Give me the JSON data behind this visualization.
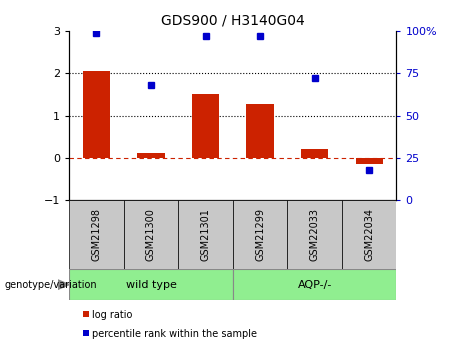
{
  "title": "GDS900 / H3140G04",
  "samples": [
    "GSM21298",
    "GSM21300",
    "GSM21301",
    "GSM21299",
    "GSM22033",
    "GSM22034"
  ],
  "log_ratio": [
    2.05,
    0.12,
    1.5,
    1.28,
    0.2,
    -0.15
  ],
  "percentile_rank": [
    99,
    68,
    97,
    97,
    72,
    18
  ],
  "groups": [
    {
      "label": "wild type",
      "indices": [
        0,
        1,
        2
      ],
      "color": "#90ee90"
    },
    {
      "label": "AQP-/-",
      "indices": [
        3,
        4,
        5
      ],
      "color": "#90ee90"
    }
  ],
  "group_box_color": "#c8c8c8",
  "bar_color": "#cc2200",
  "dot_color": "#0000cc",
  "ylim_left": [
    -1,
    3
  ],
  "ylim_right": [
    0,
    100
  ],
  "yticks_left": [
    -1,
    0,
    1,
    2,
    3
  ],
  "yticks_right": [
    0,
    25,
    50,
    75,
    100
  ],
  "legend_items": [
    {
      "label": "log ratio",
      "color": "#cc2200"
    },
    {
      "label": "percentile rank within the sample",
      "color": "#0000cc"
    }
  ],
  "genotype_label": "genotype/variation",
  "background_color": "#ffffff"
}
